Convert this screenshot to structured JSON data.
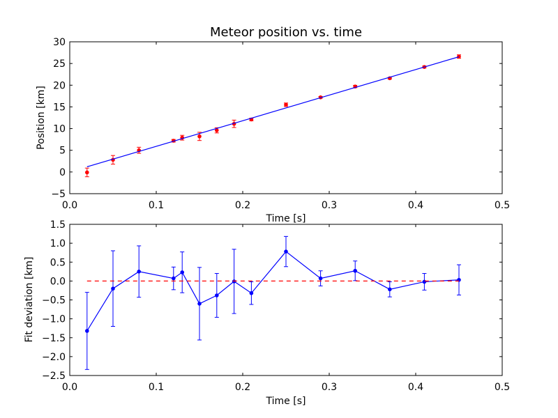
{
  "chart_data": [
    {
      "type": "scatter",
      "title": "Meteor position vs. time",
      "xlabel": "Time [s]",
      "ylabel": "Position [km]",
      "xlim": [
        0.0,
        0.5
      ],
      "ylim": [
        -5,
        30
      ],
      "xticks": [
        "0.0",
        "0.1",
        "0.2",
        "0.3",
        "0.4",
        "0.5"
      ],
      "yticks": [
        "−5",
        "0",
        "5",
        "10",
        "15",
        "20",
        "25",
        "30"
      ],
      "series": [
        {
          "type": "errorbar-scatter",
          "color": "#ff0000",
          "x": [
            0.02,
            0.05,
            0.08,
            0.12,
            0.13,
            0.15,
            0.17,
            0.19,
            0.21,
            0.25,
            0.29,
            0.33,
            0.37,
            0.41,
            0.45
          ],
          "y": [
            -0.1,
            2.8,
            5.0,
            7.2,
            7.9,
            8.2,
            9.6,
            11.1,
            12.1,
            15.5,
            17.2,
            19.7,
            21.6,
            24.2,
            26.6
          ],
          "yerr": [
            1.0,
            1.0,
            0.7,
            0.3,
            0.55,
            0.95,
            0.6,
            0.85,
            0.3,
            0.4,
            0.2,
            0.27,
            0.2,
            0.22,
            0.4
          ]
        },
        {
          "type": "line",
          "color": "#0000ff",
          "x": [
            0.02,
            0.45
          ],
          "y": [
            1.2,
            26.55
          ]
        }
      ]
    },
    {
      "type": "line",
      "title": "",
      "xlabel": "Time [s]",
      "ylabel": "Fit deviation [km]",
      "xlim": [
        0.0,
        0.5
      ],
      "ylim": [
        -2.5,
        1.5
      ],
      "xticks": [
        "0.0",
        "0.1",
        "0.2",
        "0.3",
        "0.4",
        "0.5"
      ],
      "yticks": [
        "−2.5",
        "−2.0",
        "−1.5",
        "−1.0",
        "−0.5",
        "0.0",
        "0.5",
        "1.0",
        "1.5"
      ],
      "series": [
        {
          "type": "errorbar-line",
          "color": "#0000ff",
          "x": [
            0.02,
            0.05,
            0.08,
            0.12,
            0.13,
            0.15,
            0.17,
            0.19,
            0.21,
            0.25,
            0.29,
            0.33,
            0.37,
            0.41,
            0.45
          ],
          "y": [
            -1.32,
            -0.2,
            0.25,
            0.07,
            0.23,
            -0.6,
            -0.38,
            -0.01,
            -0.32,
            0.78,
            0.07,
            0.27,
            -0.22,
            -0.02,
            0.03
          ],
          "yerr": [
            1.02,
            1.0,
            0.68,
            0.3,
            0.54,
            0.96,
            0.58,
            0.85,
            0.3,
            0.4,
            0.2,
            0.26,
            0.2,
            0.22,
            0.4
          ]
        },
        {
          "type": "dashed-line",
          "color": "#ff0000",
          "x": [
            0.02,
            0.45
          ],
          "y": [
            0.0,
            0.0
          ]
        }
      ]
    }
  ]
}
